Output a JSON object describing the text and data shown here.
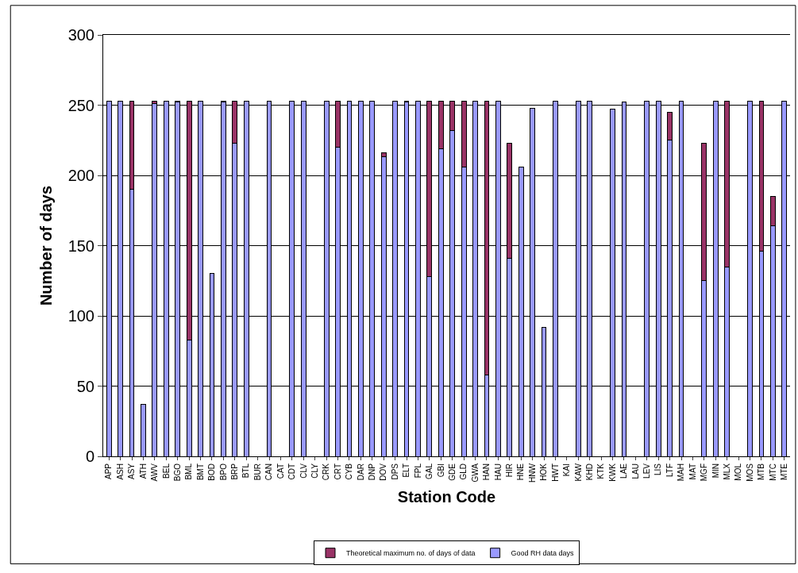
{
  "chart_data": {
    "type": "bar",
    "stacked": true,
    "xlabel": "Station Code",
    "ylabel": "Number of days",
    "categories": [
      "APP",
      "ASH",
      "ASY",
      "ATH",
      "AWV",
      "BEL",
      "BGO",
      "BML",
      "BMT",
      "BOD",
      "BPO",
      "BRP",
      "BTL",
      "BUR",
      "CAN",
      "CAT",
      "CDT",
      "CLV",
      "CLY",
      "CRK",
      "CRT",
      "CYB",
      "DAR",
      "DNP",
      "DOV",
      "DPS",
      "ELT",
      "FPL",
      "GAL",
      "GBI",
      "GDE",
      "GLD",
      "GWA",
      "HAN",
      "HAU",
      "HIR",
      "HNE",
      "HNW",
      "HOK",
      "HWT",
      "KAI",
      "KAW",
      "KHD",
      "KTK",
      "KWK",
      "LAE",
      "LAU",
      "LEV",
      "LIS",
      "LTF",
      "MAH",
      "MAT",
      "MGF",
      "MIN",
      "MLX",
      "MOL",
      "MOS",
      "MTB",
      "MTC",
      "MTE"
    ],
    "series": [
      {
        "name": "Good RH data days",
        "color": "#9999ff",
        "values": [
          253,
          253,
          190,
          37,
          251,
          253,
          252,
          83,
          253,
          130,
          252,
          223,
          253,
          null,
          253,
          null,
          253,
          253,
          null,
          253,
          220,
          253,
          253,
          253,
          213,
          253,
          252,
          253,
          128,
          219,
          232,
          206,
          253,
          58,
          253,
          141,
          206,
          248,
          92,
          253,
          null,
          253,
          253,
          null,
          247,
          252,
          null,
          253,
          253,
          225,
          253,
          null,
          125,
          253,
          135,
          null,
          253,
          146,
          164,
          253
        ]
      },
      {
        "name": "Theoretical maximum no. of days of data",
        "color": "#993366",
        "values": [
          null,
          null,
          63,
          null,
          2,
          null,
          1,
          170,
          null,
          null,
          1,
          30,
          null,
          null,
          null,
          null,
          null,
          null,
          null,
          null,
          33,
          null,
          null,
          null,
          3,
          null,
          1,
          null,
          125,
          34,
          21,
          47,
          null,
          195,
          null,
          82,
          null,
          null,
          null,
          null,
          null,
          null,
          null,
          null,
          null,
          null,
          null,
          null,
          null,
          20,
          null,
          null,
          98,
          null,
          118,
          null,
          null,
          107,
          21,
          null
        ]
      }
    ],
    "ylim": [
      0,
      300
    ],
    "yticks": [
      0,
      50,
      100,
      150,
      200,
      250,
      300
    ],
    "grid": "y",
    "legend": "bottom"
  }
}
